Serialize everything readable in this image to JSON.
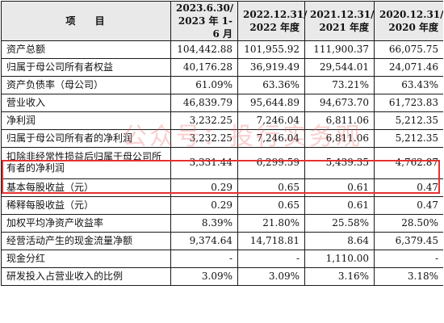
{
  "header": {
    "item": "项 目",
    "col1": [
      "2023.6.30/",
      "2023 年 1-6 月"
    ],
    "col2": [
      "2022.12.31/",
      "2022 年度"
    ],
    "col3": [
      "2021.12.31/",
      "2021 年度"
    ],
    "col4": [
      "2020.12.31/",
      "2020 年度"
    ]
  },
  "rows": [
    {
      "label": "资产总额",
      "values": [
        "104,442.88",
        "101,955.92",
        "111,900.37",
        "66,075.75"
      ]
    },
    {
      "label": "归属于母公司所有者权益",
      "values": [
        "40,176.28",
        "36,919.49",
        "29,544.01",
        "24,071.46"
      ]
    },
    {
      "label": "资产负债率（母公司）",
      "values": [
        "61.09%",
        "63.36%",
        "73.21%",
        "63.43%"
      ]
    },
    {
      "label": "营业收入",
      "values": [
        "46,839.79",
        "95,644.89",
        "94,673.70",
        "61,723.83"
      ]
    },
    {
      "label": "净利润",
      "values": [
        "3,232.25",
        "7,246.04",
        "6,811.06",
        "5,212.35"
      ]
    },
    {
      "label": "归属于母公司所有者的净利润",
      "values": [
        "3,232.25",
        "7,246.04",
        "6,811.06",
        "5,212.35"
      ]
    },
    {
      "label": "扣除非经常性损益后归属于母公司所有者的净利润",
      "values": [
        "3,331.44",
        "6,299.59",
        "5,439.35",
        "4,762.87"
      ]
    },
    {
      "label": "基本每股收益（元）",
      "values": [
        "0.29",
        "0.65",
        "0.61",
        "0.47"
      ]
    },
    {
      "label": "稀释每股收益（元）",
      "values": [
        "0.29",
        "0.65",
        "0.61",
        "0.47"
      ]
    },
    {
      "label": "加权平均净资产收益率",
      "values": [
        "8.39%",
        "21.80%",
        "25.58%",
        "28.50%"
      ]
    },
    {
      "label": "经营活动产生的现金流量净额",
      "values": [
        "9,374.64",
        "14,718.81",
        "8.64",
        "6,379.45"
      ]
    },
    {
      "label": "现金分红",
      "values": [
        "-",
        "-",
        "1,110.00",
        "-"
      ]
    },
    {
      "label": "研发投入占营业收入的比例",
      "values": [
        "3.09%",
        "3.09%",
        "3.16%",
        "3.18%"
      ]
    }
  ],
  "watermark": "公众号：投行实务观",
  "highlight_color": "#e5312f"
}
